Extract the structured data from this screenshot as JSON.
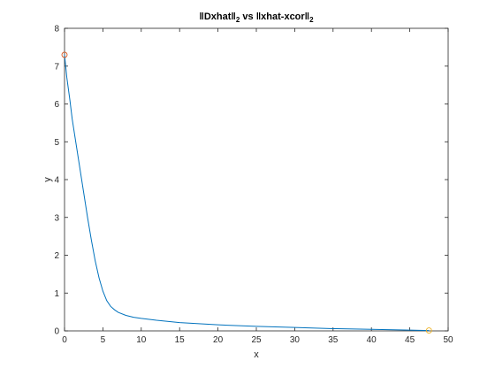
{
  "chart_data": {
    "type": "line",
    "title": {
      "prefix": "‖Dxhat‖",
      "sub1": "2",
      "middle": " vs ‖xhat-xcor‖",
      "sub2": "2"
    },
    "xlabel": "x",
    "ylabel": "y",
    "xlim": [
      0,
      50
    ],
    "ylim": [
      0,
      8
    ],
    "xticks": [
      "0",
      "5",
      "10",
      "15",
      "20",
      "25",
      "30",
      "35",
      "40",
      "45",
      "50"
    ],
    "yticks": [
      "0",
      "1",
      "2",
      "3",
      "4",
      "5",
      "6",
      "7",
      "8"
    ],
    "grid": false,
    "legend": "none",
    "series": [
      {
        "color": "#0072bd",
        "x": [
          0,
          0.3,
          0.7,
          1.0,
          1.5,
          2.0,
          2.5,
          3.0,
          3.5,
          4.0,
          4.5,
          5.0,
          5.5,
          6.0,
          6.5,
          7.0,
          8.0,
          9.0,
          10.0,
          12.0,
          15.0,
          20.0,
          25.0,
          30.0,
          35.0,
          40.0,
          45.0,
          47.5
        ],
        "y": [
          7.3,
          6.7,
          6.1,
          5.6,
          4.95,
          4.3,
          3.65,
          3.0,
          2.4,
          1.85,
          1.4,
          1.05,
          0.8,
          0.65,
          0.56,
          0.49,
          0.41,
          0.36,
          0.33,
          0.28,
          0.22,
          0.16,
          0.12,
          0.09,
          0.06,
          0.04,
          0.02,
          0.01
        ]
      }
    ],
    "markers": [
      {
        "x": 0,
        "y": 7.3,
        "color": "#d95319"
      },
      {
        "x": 47.5,
        "y": 0.01,
        "color": "#edb120"
      }
    ]
  }
}
